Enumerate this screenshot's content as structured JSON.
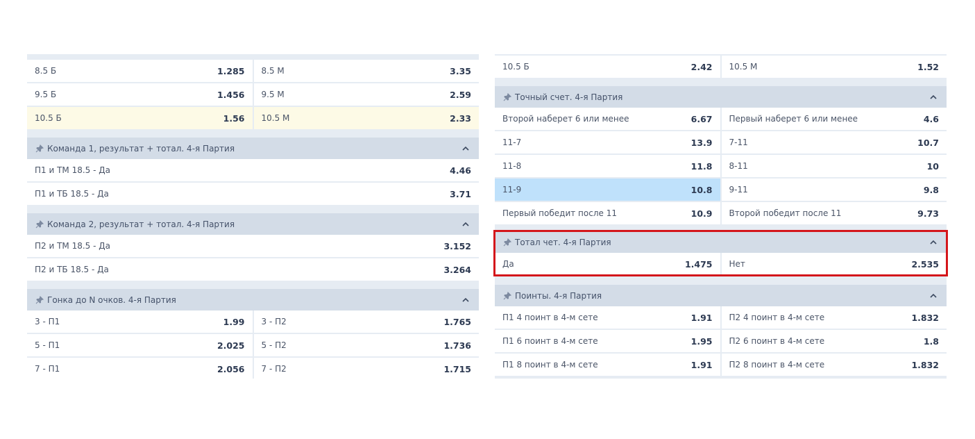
{
  "left": {
    "top_rows": [
      [
        {
          "label": "8.5 Б",
          "odd": "1.285"
        },
        {
          "label": "8.5 М",
          "odd": "3.35"
        }
      ],
      [
        {
          "label": "9.5 Б",
          "odd": "1.456"
        },
        {
          "label": "9.5 М",
          "odd": "2.59"
        }
      ],
      [
        {
          "label": "10.5 Б",
          "odd": "1.56"
        },
        {
          "label": "10.5 М",
          "odd": "2.33"
        }
      ]
    ],
    "team1": {
      "title": "Команда 1, результат + тотал. 4-я Партия",
      "rows": [
        {
          "label": "П1 и ТМ 18.5 - Да",
          "odd": "4.46"
        },
        {
          "label": "П1 и ТБ 18.5 - Да",
          "odd": "3.71"
        }
      ]
    },
    "team2": {
      "title": "Команда 2, результат + тотал. 4-я Партия",
      "rows": [
        {
          "label": "П2 и ТМ 18.5 - Да",
          "odd": "3.152"
        },
        {
          "label": "П2 и ТБ 18.5 - Да",
          "odd": "3.264"
        }
      ]
    },
    "race": {
      "title": "Гонка до N очков. 4-я Партия",
      "rows": [
        [
          {
            "label": "3 - П1",
            "odd": "1.99"
          },
          {
            "label": "3 - П2",
            "odd": "1.765"
          }
        ],
        [
          {
            "label": "5 - П1",
            "odd": "2.025"
          },
          {
            "label": "5 - П2",
            "odd": "1.736"
          }
        ],
        [
          {
            "label": "7 - П1",
            "odd": "2.056"
          },
          {
            "label": "7 - П2",
            "odd": "1.715"
          }
        ]
      ]
    }
  },
  "right": {
    "top_rows": [
      [
        {
          "label": "10.5 Б",
          "odd": "2.42"
        },
        {
          "label": "10.5 М",
          "odd": "1.52"
        }
      ]
    ],
    "exact": {
      "title": "Точный счет. 4-я Партия",
      "rows": [
        [
          {
            "label": "Второй наберет 6 или менее",
            "odd": "6.67"
          },
          {
            "label": "Первый наберет 6 или менее",
            "odd": "4.6"
          }
        ],
        [
          {
            "label": "11-7",
            "odd": "13.9"
          },
          {
            "label": "7-11",
            "odd": "10.7"
          }
        ],
        [
          {
            "label": "11-8",
            "odd": "11.8"
          },
          {
            "label": "8-11",
            "odd": "10"
          }
        ],
        [
          {
            "label": "11-9",
            "odd": "10.8"
          },
          {
            "label": "9-11",
            "odd": "9.8"
          }
        ],
        [
          {
            "label": "Первый победит после 11",
            "odd": "10.9"
          },
          {
            "label": "Второй победит после 11",
            "odd": "9.73"
          }
        ]
      ]
    },
    "total_even": {
      "title": "Тотал чет. 4-я Партия",
      "rows": [
        [
          {
            "label": "Да",
            "odd": "1.475"
          },
          {
            "label": "Нет",
            "odd": "2.535"
          }
        ]
      ]
    },
    "points": {
      "title": "Поинты. 4-я Партия",
      "rows": [
        [
          {
            "label": "П1 4 поинт в 4-м сете",
            "odd": "1.91"
          },
          {
            "label": "П2 4 поинт в 4-м сете",
            "odd": "1.832"
          }
        ],
        [
          {
            "label": "П1 6 поинт в 4-м сете",
            "odd": "1.95"
          },
          {
            "label": "П2 6 поинт в 4-м сете",
            "odd": "1.8"
          }
        ],
        [
          {
            "label": "П1 8 поинт в 4-м сете",
            "odd": "1.91"
          },
          {
            "label": "П2 8 поинт в 4-м сете",
            "odd": "1.832"
          }
        ]
      ]
    }
  },
  "colors": {
    "header_bg": "#d3dce7",
    "selected_bg": "#fdfae6",
    "hover_bg": "#bfe1fb",
    "highlight_border": "#d4161b"
  },
  "icons": {
    "pin": "pin-icon",
    "collapse": "chevron-up-icon"
  }
}
